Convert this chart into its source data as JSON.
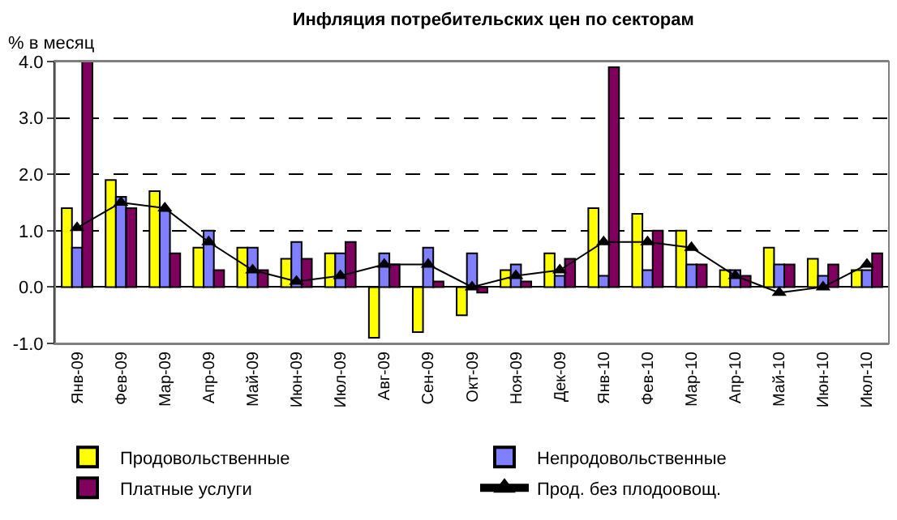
{
  "chart_data": {
    "type": "bar",
    "title": "Инфляция потребительских цен по секторам",
    "ylabel": "% в месяц",
    "categories": [
      "Янв-09",
      "Фев-09",
      "Мар-09",
      "Апр-09",
      "Май-09",
      "Июн-09",
      "Июл-09",
      "Авг-09",
      "Сен-09",
      "Окт-09",
      "Ноя-09",
      "Дек-09",
      "Янв-10",
      "Фев-10",
      "Мар-10",
      "Апр-10",
      "Май-10",
      "Июн-10",
      "Июл-10"
    ],
    "series": [
      {
        "name": "Продовольственные",
        "color": "#ffff00",
        "values": [
          1.4,
          1.9,
          1.7,
          0.7,
          0.7,
          0.5,
          0.6,
          -0.9,
          -0.8,
          -0.5,
          0.3,
          0.6,
          1.4,
          1.3,
          1.0,
          0.3,
          0.7,
          0.5,
          0.3
        ]
      },
      {
        "name": "Непродовольственные",
        "color": "#8080ff",
        "values": [
          0.7,
          1.6,
          1.35,
          1.0,
          0.7,
          0.8,
          0.6,
          0.6,
          0.7,
          0.6,
          0.4,
          0.2,
          0.2,
          0.3,
          0.4,
          0.3,
          0.4,
          0.2,
          0.3
        ]
      },
      {
        "name": "Платные услуги",
        "color": "#800060",
        "values": [
          4.0,
          1.4,
          0.6,
          0.3,
          0.3,
          0.5,
          0.8,
          0.4,
          0.1,
          -0.1,
          0.1,
          0.5,
          3.9,
          1.0,
          0.4,
          0.2,
          0.4,
          0.4,
          0.6
        ]
      },
      {
        "name": "Прод. без плодоовощ.",
        "type": "line",
        "color": "#000000",
        "marker": "triangle",
        "values": [
          1.05,
          1.5,
          1.4,
          0.8,
          0.3,
          0.1,
          0.2,
          0.4,
          0.4,
          0.0,
          0.2,
          0.3,
          0.8,
          0.8,
          0.7,
          0.2,
          -0.1,
          0.0,
          0.4
        ]
      }
    ],
    "ylim": [
      -1.0,
      4.0
    ],
    "yticks": [
      {
        "value": -1.0,
        "label": "-1.0"
      },
      {
        "value": 0,
        "label": "0.0"
      },
      {
        "value": 1,
        "label": "1.0"
      },
      {
        "value": 2,
        "label": "2.0"
      },
      {
        "value": 3,
        "label": "3.0"
      },
      {
        "value": 4,
        "label": "4.0"
      }
    ],
    "grid": "y",
    "legend": "bottom"
  }
}
